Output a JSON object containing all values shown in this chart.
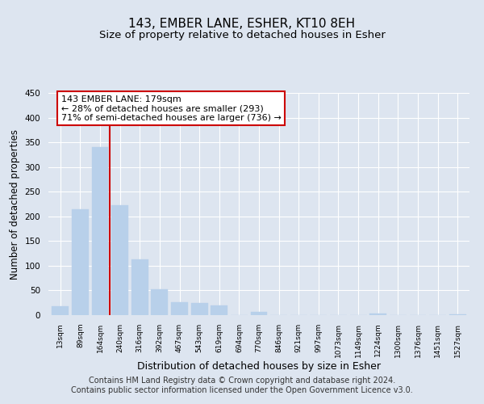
{
  "title": "143, EMBER LANE, ESHER, KT10 8EH",
  "subtitle": "Size of property relative to detached houses in Esher",
  "xlabel": "Distribution of detached houses by size in Esher",
  "ylabel": "Number of detached properties",
  "bar_labels": [
    "13sqm",
    "89sqm",
    "164sqm",
    "240sqm",
    "316sqm",
    "392sqm",
    "467sqm",
    "543sqm",
    "619sqm",
    "694sqm",
    "770sqm",
    "846sqm",
    "921sqm",
    "997sqm",
    "1073sqm",
    "1149sqm",
    "1224sqm",
    "1300sqm",
    "1376sqm",
    "1451sqm",
    "1527sqm"
  ],
  "bar_values": [
    18,
    215,
    340,
    222,
    113,
    53,
    26,
    24,
    20,
    0,
    7,
    0,
    0,
    0,
    0,
    0,
    3,
    0,
    0,
    0,
    2
  ],
  "bar_color": "#b8d0ea",
  "bar_edge_color": "#b8d0ea",
  "ylim": [
    0,
    450
  ],
  "yticks": [
    0,
    50,
    100,
    150,
    200,
    250,
    300,
    350,
    400,
    450
  ],
  "vline_x": 2,
  "vline_color": "#cc0000",
  "annotation_line1": "143 EMBER LANE: 179sqm",
  "annotation_line2": "← 28% of detached houses are smaller (293)",
  "annotation_line3": "71% of semi-detached houses are larger (736) →",
  "annotation_box_color": "#ffffff",
  "annotation_border_color": "#cc0000",
  "footer_line1": "Contains HM Land Registry data © Crown copyright and database right 2024.",
  "footer_line2": "Contains public sector information licensed under the Open Government Licence v3.0.",
  "background_color": "#dde5f0",
  "plot_bg_color": "#dde5f0",
  "grid_color": "#ffffff",
  "title_fontsize": 11,
  "subtitle_fontsize": 9.5,
  "footer_fontsize": 7
}
